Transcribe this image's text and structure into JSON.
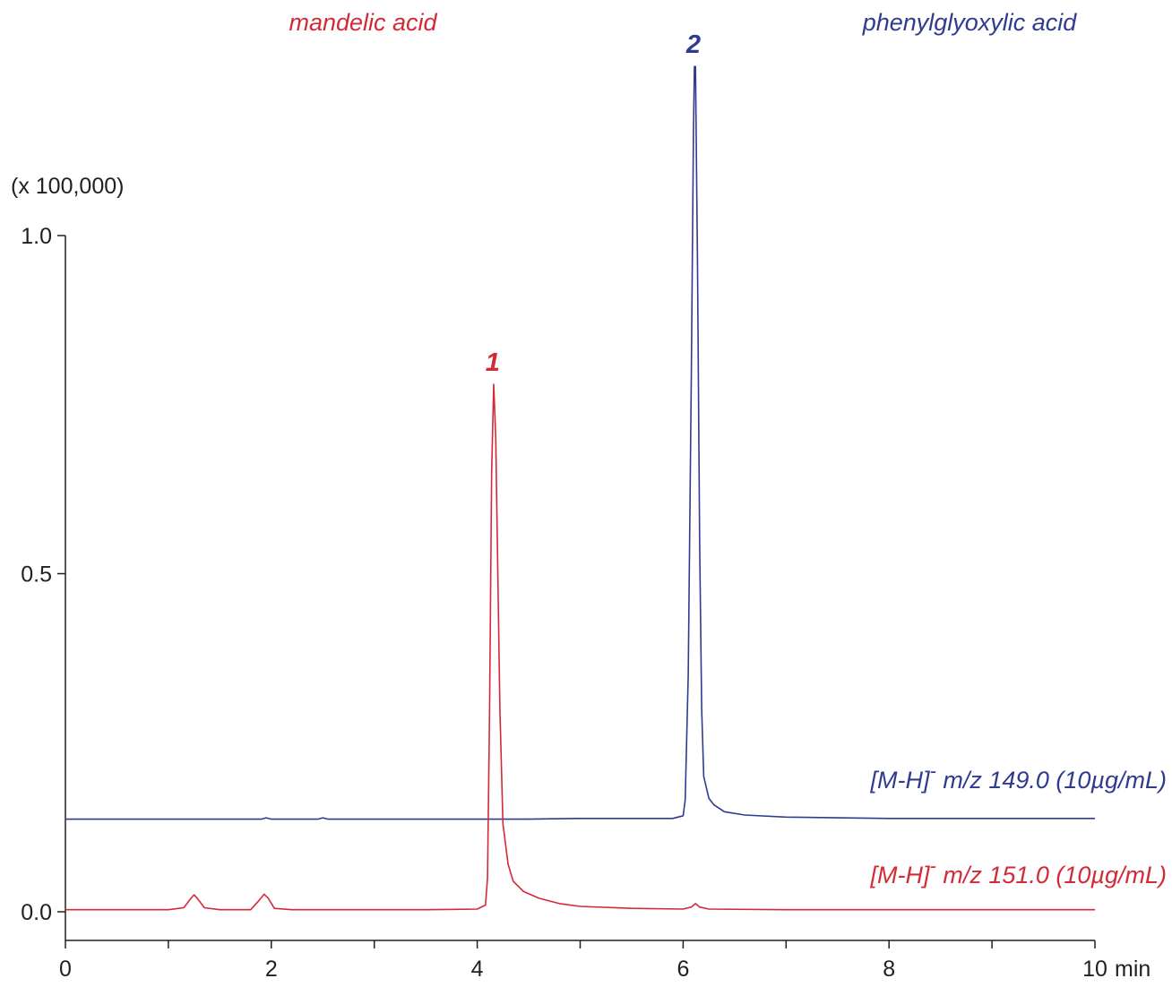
{
  "chart_data": {
    "type": "line",
    "y_unit_label": "(x 100,000)",
    "x_unit_label": "min",
    "xlim": [
      0,
      10
    ],
    "ylim": [
      -0.04,
      1.0
    ],
    "x_tick_values": [
      0,
      1,
      2,
      3,
      4,
      5,
      6,
      7,
      8,
      9,
      10
    ],
    "x_tick_labels": [
      {
        "value": 0,
        "label": "0"
      },
      {
        "value": 2,
        "label": "2"
      },
      {
        "value": 4,
        "label": "4"
      },
      {
        "value": 6,
        "label": "6"
      },
      {
        "value": 8,
        "label": "8"
      },
      {
        "value": 10,
        "label": "10"
      }
    ],
    "y_ticks": [
      {
        "value": 0.0,
        "label": "0.0"
      },
      {
        "value": 0.5,
        "label": "0.5"
      },
      {
        "value": 1.0,
        "label": "1.0"
      }
    ],
    "grid": false,
    "compound_labels": [
      {
        "text": "mandelic acid",
        "color": "#d42a36"
      },
      {
        "text": "phenylglyoxylic acid",
        "color": "#2e3b8f"
      }
    ],
    "peak_labels": [
      {
        "text": "1",
        "x": 4.15,
        "y": 0.8,
        "color": "#d42a36"
      },
      {
        "text": "2",
        "x": 6.1,
        "y": 1.27,
        "color": "#2e3b8f"
      }
    ],
    "series": [
      {
        "label": "[M-H]",
        "label_superscript": "-",
        "label_rest": " m/z 149.0 (10µg/mL)",
        "color": "#2e3b8f",
        "x": [
          0,
          0.5,
          1,
          1.5,
          1.9,
          1.95,
          2.0,
          2.45,
          2.5,
          2.55,
          3,
          3.5,
          4,
          4.5,
          5,
          5.5,
          5.9,
          6.0,
          6.02,
          6.05,
          6.08,
          6.1,
          6.11,
          6.12,
          6.14,
          6.16,
          6.18,
          6.2,
          6.25,
          6.3,
          6.4,
          6.6,
          7,
          7.5,
          8,
          9,
          10
        ],
        "y": [
          0.137,
          0.137,
          0.137,
          0.137,
          0.137,
          0.139,
          0.137,
          0.137,
          0.139,
          0.137,
          0.137,
          0.137,
          0.137,
          0.137,
          0.138,
          0.138,
          0.138,
          0.142,
          0.165,
          0.35,
          0.8,
          1.15,
          1.25,
          1.25,
          0.95,
          0.55,
          0.3,
          0.2,
          0.168,
          0.158,
          0.148,
          0.143,
          0.14,
          0.139,
          0.138,
          0.138,
          0.138
        ]
      },
      {
        "label": "[M-H]",
        "label_superscript": "-",
        "label_rest": " m/z 151.0 (10µg/mL)",
        "color": "#d42a36",
        "x": [
          0,
          0.5,
          1.0,
          1.15,
          1.22,
          1.25,
          1.28,
          1.35,
          1.5,
          1.8,
          1.87,
          1.93,
          1.97,
          2.03,
          2.2,
          3,
          3.5,
          4.0,
          4.08,
          4.1,
          4.12,
          4.14,
          4.16,
          4.18,
          4.2,
          4.22,
          4.25,
          4.3,
          4.35,
          4.45,
          4.6,
          4.8,
          5,
          5.5,
          6.0,
          6.08,
          6.12,
          6.16,
          6.25,
          7,
          8,
          9,
          10
        ],
        "y": [
          0.003,
          0.003,
          0.003,
          0.006,
          0.02,
          0.025,
          0.02,
          0.006,
          0.003,
          0.003,
          0.015,
          0.026,
          0.02,
          0.005,
          0.003,
          0.003,
          0.003,
          0.004,
          0.01,
          0.05,
          0.3,
          0.65,
          0.78,
          0.7,
          0.5,
          0.3,
          0.13,
          0.07,
          0.045,
          0.03,
          0.02,
          0.012,
          0.008,
          0.005,
          0.004,
          0.007,
          0.012,
          0.007,
          0.004,
          0.003,
          0.003,
          0.003,
          0.003
        ]
      }
    ]
  }
}
